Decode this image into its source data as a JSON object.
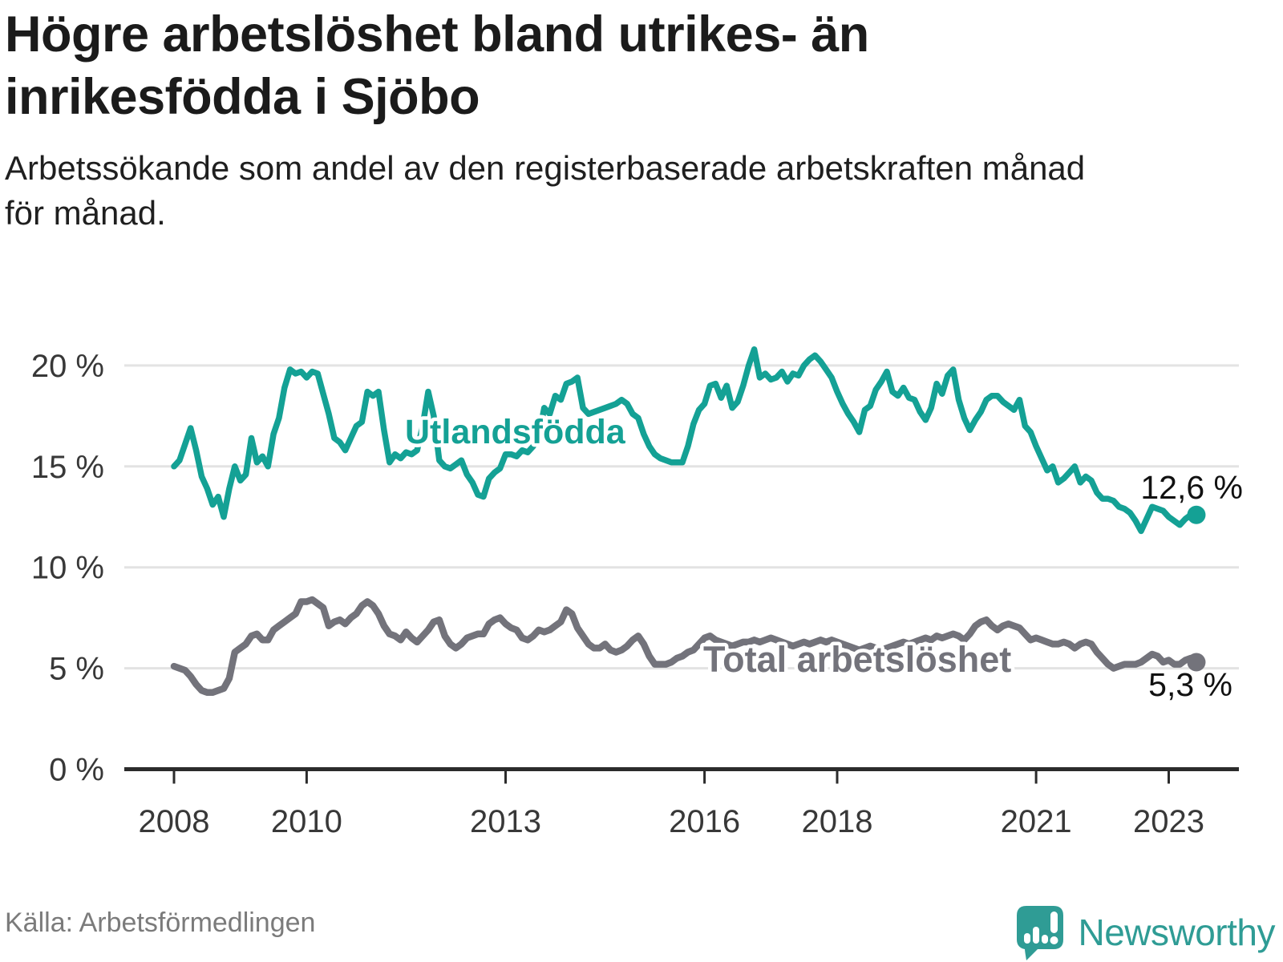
{
  "header": {
    "title_lines": [
      "Högre arbetslöshet bland utrikes- än",
      "inrikesfödda i Sjöbo"
    ],
    "subtitle_lines": [
      "Arbetssökande som andel av den registerbaserade arbetskraften månad",
      "för månad."
    ]
  },
  "footer": {
    "source": "Källa: Arbetsförmedlingen",
    "brand": "Newsworthy",
    "brand_color": "#2f9c95"
  },
  "chart_data": {
    "type": "line",
    "x_start": {
      "year": 2008,
      "month": 1
    },
    "x_end": {
      "year": 2023,
      "month": 6
    },
    "points_per_year": 12,
    "ylim": [
      0,
      21.5
    ],
    "yticks": [
      0,
      5,
      10,
      15,
      20
    ],
    "ytick_labels": [
      "0 %",
      "5 %",
      "10 %",
      "15 %",
      "20 %"
    ],
    "xtick_years": [
      2008,
      2010,
      2013,
      2016,
      2018,
      2021,
      2023
    ],
    "xtick_labels": [
      "2008",
      "2010",
      "2013",
      "2016",
      "2018",
      "2021",
      "2023"
    ],
    "grid": true,
    "legend_position": "inline-labels",
    "colors": {
      "grid": "#e3e3e3",
      "axis": "#2b2b2b",
      "tick_text": "#383838",
      "value_label": "#111111"
    },
    "series": [
      {
        "name": "Utlandsfödda",
        "color": "#14a195",
        "end_label": "12,6 %",
        "values": [
          15.0,
          15.3,
          16.1,
          16.9,
          15.8,
          14.5,
          13.9,
          13.1,
          13.5,
          12.5,
          13.9,
          15.0,
          14.3,
          14.6,
          16.4,
          15.2,
          15.5,
          15.0,
          16.6,
          17.4,
          18.9,
          19.8,
          19.6,
          19.7,
          19.4,
          19.7,
          19.6,
          18.6,
          17.6,
          16.4,
          16.2,
          15.8,
          16.4,
          17.0,
          17.2,
          18.7,
          18.5,
          18.7,
          16.8,
          15.2,
          15.6,
          15.4,
          15.7,
          15.6,
          15.8,
          17.0,
          18.7,
          17.5,
          15.3,
          15.0,
          14.9,
          15.1,
          15.3,
          14.6,
          14.2,
          13.6,
          13.5,
          14.4,
          14.7,
          14.9,
          15.6,
          15.6,
          15.5,
          15.8,
          15.7,
          16.0,
          16.5,
          17.9,
          17.6,
          18.5,
          18.3,
          19.1,
          19.2,
          19.4,
          17.9,
          17.6,
          17.7,
          17.8,
          17.9,
          18.0,
          18.1,
          18.3,
          18.1,
          17.6,
          17.4,
          16.6,
          16.0,
          15.6,
          15.4,
          15.3,
          15.2,
          15.2,
          15.2,
          16.0,
          17.1,
          17.8,
          18.1,
          19.0,
          19.1,
          18.4,
          19.0,
          17.9,
          18.2,
          19.0,
          20.0,
          20.8,
          19.4,
          19.6,
          19.3,
          19.4,
          19.7,
          19.2,
          19.6,
          19.5,
          20.0,
          20.3,
          20.5,
          20.2,
          19.8,
          19.4,
          18.7,
          18.1,
          17.6,
          17.2,
          16.7,
          17.8,
          18.0,
          18.8,
          19.2,
          19.7,
          18.7,
          18.5,
          18.9,
          18.4,
          18.3,
          17.7,
          17.3,
          17.9,
          19.1,
          18.6,
          19.5,
          19.8,
          18.3,
          17.4,
          16.8,
          17.3,
          17.7,
          18.3,
          18.5,
          18.5,
          18.2,
          18.0,
          17.8,
          18.3,
          17.0,
          16.7,
          16.0,
          15.4,
          14.8,
          15.0,
          14.2,
          14.4,
          14.7,
          15.0,
          14.2,
          14.5,
          14.3,
          13.7,
          13.4,
          13.4,
          13.3,
          13.0,
          12.9,
          12.7,
          12.3,
          11.8,
          12.4,
          13.0,
          12.9,
          12.8,
          12.5,
          12.3,
          12.1,
          12.4,
          12.6,
          12.6
        ]
      },
      {
        "name": "Total arbetslöshet",
        "color": "#73737b",
        "end_label": "5,3 %",
        "values": [
          5.1,
          5.0,
          4.9,
          4.6,
          4.2,
          3.9,
          3.8,
          3.8,
          3.9,
          4.0,
          4.5,
          5.8,
          6.0,
          6.2,
          6.6,
          6.7,
          6.4,
          6.4,
          6.9,
          7.1,
          7.3,
          7.5,
          7.7,
          8.3,
          8.3,
          8.4,
          8.2,
          8.0,
          7.1,
          7.3,
          7.4,
          7.2,
          7.5,
          7.7,
          8.1,
          8.3,
          8.1,
          7.7,
          7.1,
          6.7,
          6.6,
          6.4,
          6.8,
          6.5,
          6.3,
          6.6,
          6.9,
          7.3,
          7.4,
          6.6,
          6.2,
          6.0,
          6.2,
          6.5,
          6.6,
          6.7,
          6.7,
          7.2,
          7.4,
          7.5,
          7.2,
          7.0,
          6.9,
          6.5,
          6.4,
          6.6,
          6.9,
          6.8,
          6.9,
          7.1,
          7.3,
          7.9,
          7.7,
          7.0,
          6.6,
          6.2,
          6.0,
          6.0,
          6.2,
          5.9,
          5.8,
          5.9,
          6.1,
          6.4,
          6.6,
          6.2,
          5.6,
          5.2,
          5.2,
          5.2,
          5.3,
          5.5,
          5.6,
          5.8,
          5.9,
          6.2,
          6.5,
          6.6,
          6.4,
          6.3,
          6.2,
          6.1,
          6.2,
          6.3,
          6.3,
          6.4,
          6.3,
          6.4,
          6.5,
          6.4,
          6.3,
          6.2,
          6.1,
          6.2,
          6.3,
          6.2,
          6.3,
          6.4,
          6.3,
          6.4,
          6.3,
          6.2,
          6.1,
          6.0,
          5.9,
          6.0,
          6.1,
          6.0,
          5.9,
          6.0,
          6.1,
          6.2,
          6.3,
          6.2,
          6.3,
          6.4,
          6.5,
          6.4,
          6.6,
          6.5,
          6.6,
          6.7,
          6.6,
          6.4,
          6.7,
          7.1,
          7.3,
          7.4,
          7.1,
          6.9,
          7.1,
          7.2,
          7.1,
          7.0,
          6.7,
          6.4,
          6.5,
          6.4,
          6.3,
          6.2,
          6.2,
          6.3,
          6.2,
          6.0,
          6.2,
          6.3,
          6.2,
          5.8,
          5.5,
          5.2,
          5.0,
          5.1,
          5.2,
          5.2,
          5.2,
          5.3,
          5.5,
          5.7,
          5.6,
          5.3,
          5.4,
          5.2,
          5.2,
          5.4,
          5.5,
          5.3
        ]
      }
    ]
  }
}
